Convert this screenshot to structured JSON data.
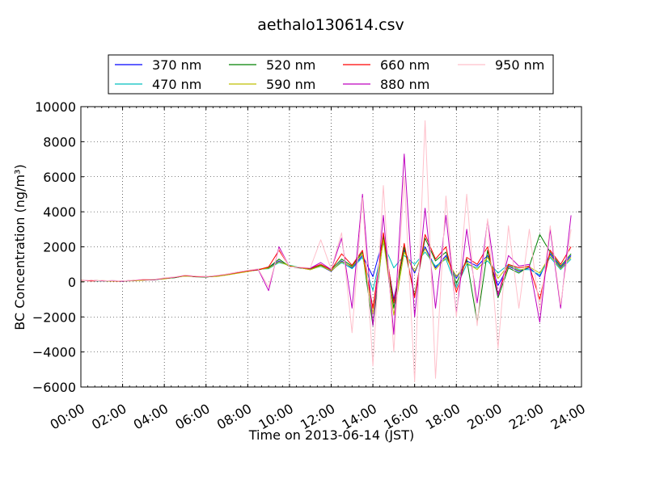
{
  "chart_data": {
    "type": "line",
    "title": "aethalo130614.csv",
    "xlabel": "Time on 2013-06-14 (JST)",
    "ylabel": "BC Concentration (ng/m³)",
    "xlim_hours": [
      0,
      24
    ],
    "ylim": [
      -6000,
      10000
    ],
    "x_ticks": [
      "00:00",
      "02:00",
      "04:00",
      "06:00",
      "08:00",
      "10:00",
      "12:00",
      "14:00",
      "16:00",
      "18:00",
      "20:00",
      "22:00",
      "24:00"
    ],
    "y_ticks": [
      -6000,
      -4000,
      -2000,
      0,
      2000,
      4000,
      6000,
      8000,
      10000
    ],
    "grid": true,
    "legend_location": "top (above plot)",
    "series": [
      {
        "name": "370 nm",
        "color": "#0000ff",
        "x": [
          0,
          0.5,
          1,
          1.5,
          2,
          2.5,
          3,
          3.5,
          4,
          4.5,
          5,
          5.5,
          6,
          6.5,
          7,
          7.5,
          8,
          8.5,
          9,
          9.5,
          10,
          10.5,
          11,
          11.5,
          12,
          12.5,
          13,
          13.5,
          14,
          14.5,
          15,
          15.5,
          16,
          16.5,
          17,
          17.5,
          18,
          18.5,
          19,
          19.5,
          20,
          20.5,
          21,
          21.5,
          22,
          22.5,
          23,
          23.5
        ],
        "values": [
          60,
          70,
          40,
          60,
          30,
          80,
          100,
          120,
          180,
          250,
          350,
          300,
          280,
          320,
          400,
          500,
          600,
          700,
          800,
          1200,
          900,
          800,
          700,
          900,
          600,
          1200,
          800,
          1500,
          300,
          2500,
          -1000,
          1800,
          500,
          2000,
          800,
          1500,
          200,
          1200,
          900,
          1500,
          -200,
          900,
          600,
          800,
          300,
          1600,
          800,
          1500
        ]
      },
      {
        "name": "470 nm",
        "color": "#00bfbf",
        "x": [
          0,
          0.5,
          1,
          1.5,
          2,
          2.5,
          3,
          3.5,
          4,
          4.5,
          5,
          5.5,
          6,
          6.5,
          7,
          7.5,
          8,
          8.5,
          9,
          9.5,
          10,
          10.5,
          11,
          11.5,
          12,
          12.5,
          13,
          13.5,
          14,
          14.5,
          15,
          15.5,
          16,
          16.5,
          17,
          17.5,
          18,
          18.5,
          19,
          19.5,
          20,
          20.5,
          21,
          21.5,
          22,
          22.5,
          23,
          23.5
        ],
        "values": [
          50,
          80,
          30,
          70,
          40,
          90,
          110,
          130,
          190,
          260,
          340,
          310,
          290,
          330,
          410,
          510,
          620,
          720,
          750,
          1100,
          950,
          820,
          720,
          880,
          650,
          1100,
          750,
          1400,
          -500,
          2200,
          800,
          1500,
          1000,
          1700,
          900,
          1300,
          -300,
          1000,
          800,
          1200,
          500,
          1000,
          700,
          700,
          400,
          1400,
          700,
          1300
        ]
      },
      {
        "name": "520 nm",
        "color": "#008000",
        "x": [
          0,
          0.5,
          1,
          1.5,
          2,
          2.5,
          3,
          3.5,
          4,
          4.5,
          5,
          5.5,
          6,
          6.5,
          7,
          7.5,
          8,
          8.5,
          9,
          9.5,
          10,
          10.5,
          11,
          11.5,
          12,
          12.5,
          13,
          13.5,
          14,
          14.5,
          15,
          15.5,
          16,
          16.5,
          17,
          17.5,
          18,
          18.5,
          19,
          19.5,
          20,
          20.5,
          21,
          21.5,
          22,
          22.5,
          23,
          23.5
        ],
        "values": [
          70,
          60,
          50,
          50,
          60,
          70,
          120,
          110,
          200,
          240,
          360,
          290,
          270,
          340,
          420,
          520,
          610,
          680,
          820,
          1300,
          880,
          790,
          750,
          950,
          700,
          1300,
          900,
          1700,
          -2500,
          2600,
          -1500,
          2000,
          -800,
          2500,
          1200,
          1700,
          -100,
          1300,
          -2300,
          1800,
          -900,
          800,
          500,
          900,
          2700,
          1700,
          900,
          1600
        ]
      },
      {
        "name": "590 nm",
        "color": "#bfbf00",
        "x": [
          0,
          0.5,
          1,
          1.5,
          2,
          2.5,
          3,
          3.5,
          4,
          4.5,
          5,
          5.5,
          6,
          6.5,
          7,
          7.5,
          8,
          8.5,
          9,
          9.5,
          10,
          10.5,
          11,
          11.5,
          12,
          12.5,
          13,
          13.5,
          14,
          14.5,
          15,
          15.5,
          16,
          16.5,
          17,
          17.5,
          18,
          18.5,
          19,
          19.5,
          20,
          20.5,
          21,
          21.5,
          22,
          22.5,
          23,
          23.5
        ],
        "values": [
          40,
          90,
          60,
          40,
          50,
          60,
          90,
          140,
          170,
          270,
          330,
          320,
          300,
          310,
          390,
          490,
          590,
          710,
          780,
          1150,
          920,
          810,
          690,
          910,
          620,
          1150,
          850,
          1600,
          -1800,
          2400,
          -1900,
          1700,
          600,
          1900,
          700,
          1400,
          300,
          1100,
          700,
          1400,
          200,
          950,
          650,
          850,
          500,
          1500,
          750,
          1400
        ]
      },
      {
        "name": "660 nm",
        "color": "#ff0000",
        "x": [
          0,
          0.5,
          1,
          1.5,
          2,
          2.5,
          3,
          3.5,
          4,
          4.5,
          5,
          5.5,
          6,
          6.5,
          7,
          7.5,
          8,
          8.5,
          9,
          9.5,
          10,
          10.5,
          11,
          11.5,
          12,
          12.5,
          13,
          13.5,
          14,
          14.5,
          15,
          15.5,
          16,
          16.5,
          17,
          17.5,
          18,
          18.5,
          19,
          19.5,
          20,
          20.5,
          21,
          21.5,
          22,
          22.5,
          23,
          23.5
        ],
        "values": [
          80,
          50,
          70,
          60,
          40,
          90,
          130,
          120,
          210,
          260,
          370,
          300,
          290,
          350,
          430,
          530,
          630,
          690,
          850,
          1800,
          870,
          810,
          760,
          1000,
          680,
          1600,
          950,
          1800,
          -1500,
          2800,
          -1200,
          2200,
          -900,
          2700,
          1300,
          2000,
          -600,
          1400,
          1000,
          2000,
          -700,
          1000,
          800,
          900,
          -1000,
          1800,
          1000,
          2000
        ]
      },
      {
        "name": "880 nm",
        "color": "#bf00bf",
        "x": [
          0,
          0.5,
          1,
          1.5,
          2,
          2.5,
          3,
          3.5,
          4,
          4.5,
          5,
          5.5,
          6,
          6.5,
          7,
          7.5,
          8,
          8.5,
          9,
          9.5,
          10,
          10.5,
          11,
          11.5,
          12,
          12.5,
          13,
          13.5,
          14,
          14.5,
          15,
          15.5,
          16,
          16.5,
          17,
          17.5,
          18,
          18.5,
          19,
          19.5,
          20,
          20.5,
          21,
          21.5,
          22,
          22.5,
          23,
          23.5
        ],
        "values": [
          60,
          90,
          50,
          70,
          60,
          80,
          140,
          130,
          220,
          270,
          380,
          320,
          300,
          360,
          440,
          550,
          650,
          720,
          -500,
          2000,
          860,
          830,
          780,
          1100,
          700,
          2500,
          -1500,
          5000,
          -2500,
          3800,
          -3000,
          7300,
          -2000,
          4200,
          -1500,
          3800,
          -1800,
          3000,
          -1200,
          3500,
          -800,
          1500,
          900,
          1000,
          -2300,
          3000,
          -1500,
          3800
        ]
      },
      {
        "name": "950 nm",
        "color": "#ffc0cb",
        "x": [
          0,
          0.5,
          1,
          1.5,
          2,
          2.5,
          3,
          3.5,
          4,
          4.5,
          5,
          5.5,
          6,
          6.5,
          7,
          7.5,
          8,
          8.5,
          9,
          9.5,
          10,
          10.5,
          11,
          11.5,
          12,
          12.5,
          13,
          13.5,
          14,
          14.5,
          15,
          15.5,
          16,
          16.5,
          17,
          17.5,
          18,
          18.5,
          19,
          19.5,
          20,
          20.5,
          21,
          21.5,
          22,
          22.5,
          23,
          23.5
        ],
        "values": [
          50,
          100,
          40,
          80,
          50,
          100,
          150,
          140,
          230,
          280,
          390,
          330,
          310,
          370,
          450,
          560,
          660,
          740,
          -300,
          1900,
          850,
          840,
          800,
          2400,
          720,
          2800,
          -2900,
          4800,
          -4800,
          5500,
          -4000,
          6000,
          -5700,
          9200,
          -5500,
          4900,
          -2000,
          5000,
          -2500,
          3600,
          -3800,
          3200,
          -1500,
          3000,
          -1700,
          3200,
          -1300,
          3000
        ]
      }
    ]
  }
}
